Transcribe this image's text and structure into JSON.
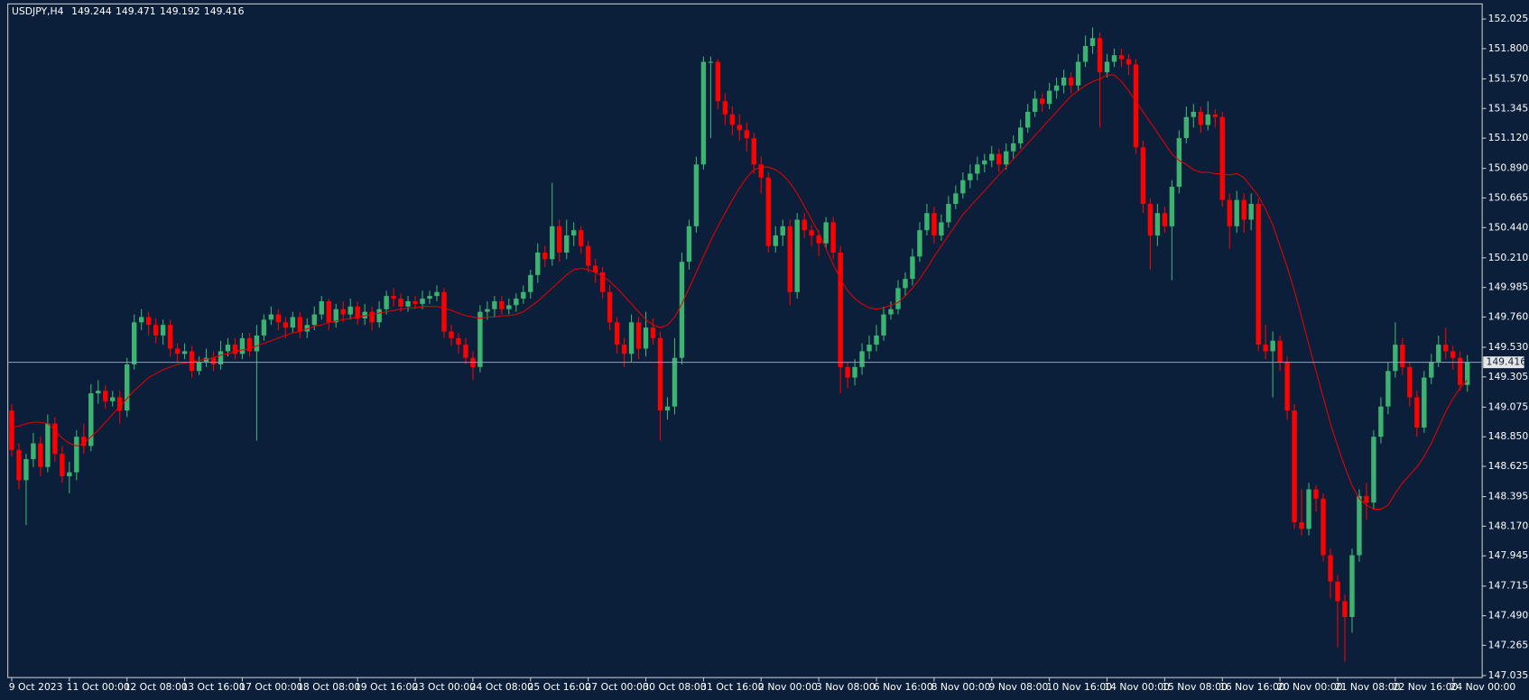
{
  "chart_data": {
    "type": "candlestick",
    "symbol": "USDJPY,H4",
    "background": "#0b1e3a",
    "up_color": "#3cb371",
    "down_color": "#ff0000",
    "ma_color": "#e60000",
    "price_line_color": "#8fa3b8",
    "ylim": [
      147.02,
      152.14
    ],
    "yticks": [
      152.025,
      {
        "value": 151.8,
        "label": "151.800"
      },
      {
        "value": 151.57,
        "label": "151.570"
      },
      151.345,
      {
        "value": 151.12,
        "label": "151.120"
      },
      {
        "value": 150.89,
        "label": "150.890"
      },
      150.665,
      {
        "value": 150.44,
        "label": "150.440"
      },
      {
        "value": 150.21,
        "label": "150.210"
      },
      149.985,
      {
        "value": 149.76,
        "label": "149.760"
      },
      {
        "value": 149.53,
        "label": "149.530"
      },
      149.305,
      149.075,
      {
        "value": 148.85,
        "label": "148.850"
      },
      148.625,
      148.395,
      {
        "value": 148.17,
        "label": "148.170"
      },
      147.945,
      147.715,
      {
        "value": 147.49,
        "label": "147.490"
      },
      147.265,
      147.035
    ],
    "categories": [
      "9 Oct 2023",
      null,
      null,
      null,
      null,
      null,
      null,
      null,
      "11 Oct 00:00",
      null,
      null,
      null,
      null,
      null,
      null,
      null,
      "12 Oct 08:00",
      null,
      null,
      null,
      null,
      null,
      null,
      null,
      "13 Oct 16:00",
      null,
      null,
      null,
      null,
      null,
      null,
      null,
      "17 Oct 00:00",
      null,
      null,
      null,
      null,
      null,
      null,
      null,
      "18 Oct 08:00",
      null,
      null,
      null,
      null,
      null,
      null,
      null,
      "19 Oct 16:00",
      null,
      null,
      null,
      null,
      null,
      null,
      null,
      "23 Oct 00:00",
      null,
      null,
      null,
      null,
      null,
      null,
      null,
      "24 Oct 08:00",
      null,
      null,
      null,
      null,
      null,
      null,
      null,
      "25 Oct 16:00",
      null,
      null,
      null,
      null,
      null,
      null,
      null,
      "27 Oct 00:00",
      null,
      null,
      null,
      null,
      null,
      null,
      null,
      "30 Oct 08:00",
      null,
      null,
      null,
      null,
      null,
      null,
      null,
      "31 Oct 16:00",
      null,
      null,
      null,
      null,
      null,
      null,
      null,
      "2 Nov 00:00",
      null,
      null,
      null,
      null,
      null,
      null,
      null,
      "3 Nov 08:00",
      null,
      null,
      null,
      null,
      null,
      null,
      null,
      "6 Nov 16:00",
      null,
      null,
      null,
      null,
      null,
      null,
      null,
      "8 Nov 00:00",
      null,
      null,
      null,
      null,
      null,
      null,
      null,
      "9 Nov 08:00",
      null,
      null,
      null,
      null,
      null,
      null,
      null,
      "10 Nov 16:00",
      null,
      null,
      null,
      null,
      null,
      null,
      null,
      "14 Nov 00:00",
      null,
      null,
      null,
      null,
      null,
      null,
      null,
      "15 Nov 08:00",
      null,
      null,
      null,
      null,
      null,
      null,
      null,
      "16 Nov 16:00",
      null,
      null,
      null,
      null,
      null,
      null,
      null,
      "20 Nov 00:00",
      null,
      null,
      null,
      null,
      null,
      null,
      null,
      "21 Nov 08:00",
      null,
      null,
      null,
      null,
      null,
      null,
      null,
      "22 Nov 16:00",
      null,
      null,
      null,
      null,
      null,
      null,
      null,
      "24 Nov 00:00",
      null,
      null
    ],
    "open": [
      149.05,
      148.75,
      148.52,
      148.68,
      148.8,
      148.62,
      148.95,
      148.72,
      148.55,
      148.58,
      148.85,
      148.78,
      149.18,
      149.2,
      149.12,
      149.15,
      149.05,
      149.4,
      149.72,
      149.76,
      149.7,
      149.62,
      149.7,
      149.52,
      149.48,
      149.5,
      149.35,
      149.42,
      149.45,
      149.4,
      149.5,
      149.55,
      149.48,
      149.6,
      149.5,
      149.62,
      149.74,
      149.78,
      149.72,
      149.68,
      149.76,
      149.65,
      149.7,
      149.78,
      149.88,
      149.72,
      149.82,
      149.78,
      149.84,
      149.75,
      149.8,
      149.72,
      149.82,
      149.92,
      149.9,
      149.84,
      149.88,
      149.86,
      149.9,
      149.92,
      149.95,
      149.65,
      149.6,
      149.55,
      149.45,
      149.38,
      149.8,
      149.82,
      149.88,
      149.82,
      149.85,
      149.9,
      149.95,
      150.08,
      150.25,
      150.2,
      150.45,
      150.25,
      150.38,
      150.42,
      150.3,
      150.15,
      150.1,
      149.95,
      149.72,
      149.55,
      149.48,
      149.72,
      149.52,
      149.68,
      149.6,
      149.05,
      149.08,
      149.45,
      150.18,
      150.45,
      150.92,
      151.7,
      151.7,
      151.4,
      151.3,
      151.22,
      151.18,
      151.12,
      150.92,
      150.82,
      150.3,
      150.38,
      150.45,
      149.95,
      150.5,
      150.42,
      150.38,
      150.32,
      150.48,
      150.25,
      149.38,
      149.3,
      149.38,
      149.5,
      149.55,
      149.62,
      149.78,
      149.82,
      149.98,
      150.05,
      150.22,
      150.42,
      150.55,
      150.38,
      150.48,
      150.62,
      150.7,
      150.8,
      150.85,
      150.92,
      150.95,
      151.0,
      150.92,
      151.02,
      151.08,
      151.2,
      151.32,
      151.42,
      151.38,
      151.48,
      151.52,
      151.58,
      151.52,
      151.7,
      151.82,
      151.88,
      151.62,
      151.7,
      151.75,
      151.72,
      151.68,
      151.05,
      150.62,
      150.38,
      150.55,
      150.45,
      150.75,
      151.12,
      151.28,
      151.32,
      151.22,
      151.3,
      151.28,
      150.65,
      150.45,
      150.65,
      150.5,
      150.62,
      149.55,
      149.5,
      149.58,
      149.42,
      149.05,
      148.2,
      148.15,
      148.45,
      148.38,
      147.95,
      147.75,
      147.6,
      147.48,
      147.95,
      148.4,
      148.35,
      148.85,
      149.08,
      149.35,
      149.55,
      149.38,
      149.15,
      148.92,
      149.3,
      149.42,
      149.55,
      149.5,
      149.45,
      149.244
    ],
    "high": [
      149.1,
      148.8,
      148.72,
      148.88,
      148.85,
      149.02,
      149.0,
      148.78,
      148.66,
      148.9,
      148.95,
      149.25,
      149.28,
      149.24,
      149.2,
      149.2,
      149.45,
      149.78,
      149.82,
      149.8,
      149.75,
      149.74,
      149.74,
      149.56,
      149.56,
      149.54,
      149.46,
      149.52,
      149.5,
      149.58,
      149.6,
      149.6,
      149.64,
      149.64,
      149.7,
      149.78,
      149.84,
      149.82,
      149.76,
      149.8,
      149.8,
      149.75,
      149.84,
      149.92,
      149.9,
      149.86,
      149.88,
      149.9,
      149.88,
      149.86,
      149.84,
      149.88,
      149.96,
      149.98,
      149.94,
      149.92,
      149.92,
      149.96,
      149.96,
      150.0,
      149.98,
      149.7,
      149.64,
      149.6,
      149.5,
      149.85,
      149.88,
      149.92,
      149.92,
      149.9,
      149.94,
      150.0,
      150.12,
      150.32,
      150.3,
      150.78,
      150.5,
      150.5,
      150.48,
      150.45,
      150.34,
      150.2,
      150.14,
      150.0,
      149.76,
      149.6,
      149.78,
      149.76,
      149.8,
      149.75,
      149.65,
      149.15,
      149.6,
      150.25,
      150.5,
      150.98,
      151.74,
      151.74,
      151.72,
      151.46,
      151.36,
      151.3,
      151.24,
      151.16,
      150.98,
      150.86,
      150.45,
      150.5,
      150.5,
      150.55,
      150.55,
      150.46,
      150.42,
      150.52,
      150.52,
      150.3,
      149.42,
      149.44,
      149.56,
      149.62,
      149.7,
      149.84,
      149.88,
      150.04,
      150.1,
      150.28,
      150.48,
      150.62,
      150.6,
      150.54,
      150.68,
      150.76,
      150.86,
      150.92,
      150.98,
      151.0,
      151.06,
      151.04,
      151.08,
      151.14,
      151.26,
      151.38,
      151.48,
      151.46,
      151.54,
      151.58,
      151.64,
      151.62,
      151.76,
      151.9,
      151.96,
      151.92,
      151.76,
      151.8,
      151.8,
      151.76,
      151.72,
      151.1,
      150.66,
      150.62,
      150.6,
      150.8,
      151.18,
      151.36,
      151.38,
      151.36,
      151.4,
      151.34,
      151.32,
      150.7,
      150.72,
      150.7,
      150.7,
      150.66,
      149.7,
      149.65,
      149.62,
      149.46,
      149.1,
      148.45,
      148.5,
      148.48,
      148.42,
      148.0,
      147.8,
      147.65,
      148.0,
      148.45,
      148.5,
      148.9,
      149.15,
      149.42,
      149.72,
      149.6,
      149.42,
      149.2,
      149.35,
      149.48,
      149.62,
      149.68,
      149.54,
      149.5,
      149.471
    ],
    "low": [
      148.7,
      148.45,
      148.18,
      148.62,
      148.55,
      148.58,
      148.66,
      148.5,
      148.42,
      148.52,
      148.72,
      148.74,
      149.1,
      149.06,
      149.08,
      148.95,
      149.0,
      149.36,
      149.66,
      149.62,
      149.56,
      149.55,
      149.46,
      149.42,
      149.44,
      149.3,
      149.32,
      149.38,
      149.35,
      149.36,
      149.46,
      149.44,
      149.44,
      149.46,
      148.82,
      149.58,
      149.7,
      149.66,
      149.6,
      149.64,
      149.6,
      149.6,
      149.66,
      149.74,
      149.66,
      149.68,
      149.72,
      149.74,
      149.7,
      149.7,
      149.66,
      149.68,
      149.78,
      149.84,
      149.8,
      149.8,
      149.82,
      149.82,
      149.86,
      149.88,
      149.6,
      149.54,
      149.48,
      149.4,
      149.28,
      149.34,
      149.74,
      149.76,
      149.78,
      149.78,
      149.8,
      149.86,
      149.9,
      150.02,
      150.14,
      150.15,
      150.18,
      150.2,
      150.3,
      150.24,
      150.1,
      150.02,
      149.9,
      149.66,
      149.48,
      149.38,
      149.42,
      149.44,
      149.46,
      149.55,
      148.82,
      148.98,
      149.02,
      149.4,
      150.12,
      150.4,
      150.88,
      151.12,
      151.34,
      151.22,
      151.14,
      151.1,
      151.02,
      150.85,
      150.7,
      150.25,
      150.25,
      150.3,
      149.85,
      149.9,
      150.36,
      150.3,
      150.22,
      150.28,
      150.2,
      149.18,
      149.22,
      149.24,
      149.32,
      149.44,
      149.5,
      149.58,
      149.74,
      149.78,
      149.92,
      150.0,
      150.18,
      150.38,
      150.32,
      150.34,
      150.44,
      150.58,
      150.66,
      150.74,
      150.8,
      150.86,
      150.9,
      150.86,
      150.88,
      150.96,
      151.04,
      151.16,
      151.28,
      151.32,
      151.34,
      151.42,
      151.46,
      151.46,
      151.48,
      151.66,
      151.76,
      151.2,
      151.58,
      151.66,
      151.66,
      151.6,
      151.0,
      150.55,
      150.12,
      150.3,
      150.4,
      150.04,
      150.7,
      151.08,
      151.2,
      151.16,
      151.18,
      151.2,
      150.6,
      150.28,
      150.4,
      150.4,
      150.42,
      149.5,
      149.44,
      149.15,
      149.35,
      148.98,
      148.15,
      148.1,
      148.1,
      148.28,
      147.9,
      147.62,
      147.25,
      147.14,
      147.36,
      147.9,
      148.22,
      148.3,
      148.8,
      149.02,
      149.3,
      149.32,
      149.08,
      148.85,
      148.88,
      149.25,
      149.38,
      149.44,
      149.36,
      149.2,
      149.192
    ],
    "close": [
      148.75,
      148.52,
      148.68,
      148.8,
      148.62,
      148.95,
      148.72,
      148.55,
      148.58,
      148.85,
      148.78,
      149.18,
      149.2,
      149.12,
      149.15,
      149.05,
      149.4,
      149.72,
      149.76,
      149.7,
      149.62,
      149.7,
      149.52,
      149.48,
      149.5,
      149.35,
      149.42,
      149.45,
      149.4,
      149.5,
      149.55,
      149.48,
      149.6,
      149.5,
      149.62,
      149.74,
      149.78,
      149.72,
      149.68,
      149.76,
      149.65,
      149.7,
      149.78,
      149.88,
      149.72,
      149.82,
      149.78,
      149.84,
      149.75,
      149.8,
      149.72,
      149.82,
      149.92,
      149.9,
      149.84,
      149.88,
      149.86,
      149.9,
      149.92,
      149.95,
      149.65,
      149.6,
      149.55,
      149.45,
      149.38,
      149.8,
      149.82,
      149.88,
      149.82,
      149.85,
      149.9,
      149.95,
      150.08,
      150.25,
      150.2,
      150.45,
      150.25,
      150.38,
      150.42,
      150.3,
      150.15,
      150.1,
      149.95,
      149.72,
      149.55,
      149.48,
      149.72,
      149.52,
      149.68,
      149.6,
      149.05,
      149.08,
      149.45,
      150.18,
      150.45,
      150.92,
      151.7,
      151.7,
      151.4,
      151.3,
      151.22,
      151.18,
      151.12,
      150.92,
      150.82,
      150.3,
      150.38,
      150.45,
      149.95,
      150.5,
      150.42,
      150.38,
      150.32,
      150.48,
      150.25,
      149.38,
      149.3,
      149.38,
      149.5,
      149.55,
      149.62,
      149.78,
      149.82,
      149.98,
      150.05,
      150.22,
      150.42,
      150.55,
      150.38,
      150.48,
      150.62,
      150.7,
      150.8,
      150.85,
      150.92,
      150.95,
      151.0,
      150.92,
      151.02,
      151.08,
      151.2,
      151.32,
      151.42,
      151.38,
      151.48,
      151.52,
      151.58,
      151.52,
      151.7,
      151.82,
      151.88,
      151.62,
      151.7,
      151.75,
      151.72,
      151.68,
      151.05,
      150.62,
      150.38,
      150.55,
      150.45,
      150.75,
      151.12,
      151.28,
      151.32,
      151.22,
      151.3,
      151.28,
      150.65,
      150.45,
      150.65,
      150.5,
      150.62,
      149.55,
      149.5,
      149.58,
      149.42,
      149.05,
      148.2,
      148.15,
      148.45,
      148.38,
      147.95,
      147.75,
      147.6,
      147.48,
      147.95,
      148.4,
      148.35,
      148.85,
      149.08,
      149.35,
      149.55,
      149.38,
      149.15,
      148.92,
      149.3,
      149.42,
      149.55,
      149.5,
      149.45,
      149.244,
      149.416
    ],
    "ma": [
      148.92,
      148.93,
      148.95,
      148.96,
      148.96,
      148.95,
      148.9,
      148.84,
      148.8,
      148.78,
      148.8,
      148.85,
      148.9,
      148.96,
      149.02,
      149.08,
      149.14,
      149.2,
      149.25,
      149.3,
      149.33,
      149.36,
      149.38,
      149.4,
      149.41,
      149.42,
      149.43,
      149.44,
      149.45,
      149.47,
      149.48,
      149.5,
      149.51,
      149.52,
      149.54,
      149.56,
      149.58,
      149.6,
      149.62,
      149.64,
      149.65,
      149.67,
      149.69,
      149.7,
      149.72,
      149.73,
      149.74,
      149.75,
      149.76,
      149.77,
      149.78,
      149.79,
      149.8,
      149.81,
      149.82,
      149.83,
      149.83,
      149.84,
      149.84,
      149.84,
      149.83,
      149.81,
      149.79,
      149.77,
      149.76,
      149.75,
      149.76,
      149.76,
      149.77,
      149.77,
      149.78,
      149.8,
      149.84,
      149.88,
      149.93,
      149.98,
      150.03,
      150.08,
      150.12,
      150.13,
      150.12,
      150.1,
      150.07,
      150.03,
      149.98,
      149.92,
      149.86,
      149.8,
      149.74,
      149.7,
      149.68,
      149.7,
      149.76,
      149.86,
      149.98,
      150.1,
      150.22,
      150.34,
      150.45,
      150.55,
      150.65,
      150.74,
      150.82,
      150.88,
      150.9,
      150.9,
      150.88,
      150.84,
      150.78,
      150.7,
      150.6,
      150.5,
      150.4,
      150.28,
      150.16,
      150.05,
      149.96,
      149.9,
      149.86,
      149.83,
      149.82,
      149.83,
      149.85,
      149.87,
      149.92,
      149.98,
      150.05,
      150.13,
      150.22,
      150.3,
      150.38,
      150.46,
      150.54,
      150.6,
      150.66,
      150.72,
      150.78,
      150.84,
      150.9,
      150.96,
      151.02,
      151.08,
      151.14,
      151.2,
      151.26,
      151.32,
      151.38,
      151.44,
      151.48,
      151.52,
      151.55,
      151.57,
      151.6,
      151.6,
      151.55,
      151.48,
      151.4,
      151.32,
      151.24,
      151.16,
      151.08,
      151.0,
      150.95,
      150.92,
      150.88,
      150.86,
      150.86,
      150.85,
      150.85,
      150.84,
      150.85,
      150.82,
      150.75,
      150.68,
      150.58,
      150.46,
      150.3,
      150.14,
      149.96,
      149.76,
      149.55,
      149.35,
      149.15,
      148.95,
      148.78,
      148.62,
      148.48,
      148.38,
      148.33,
      148.3,
      148.3,
      148.33,
      148.42,
      148.5,
      148.56,
      148.62,
      148.7,
      148.8,
      148.92,
      149.04,
      149.14,
      149.22,
      149.28
    ]
  }
}
